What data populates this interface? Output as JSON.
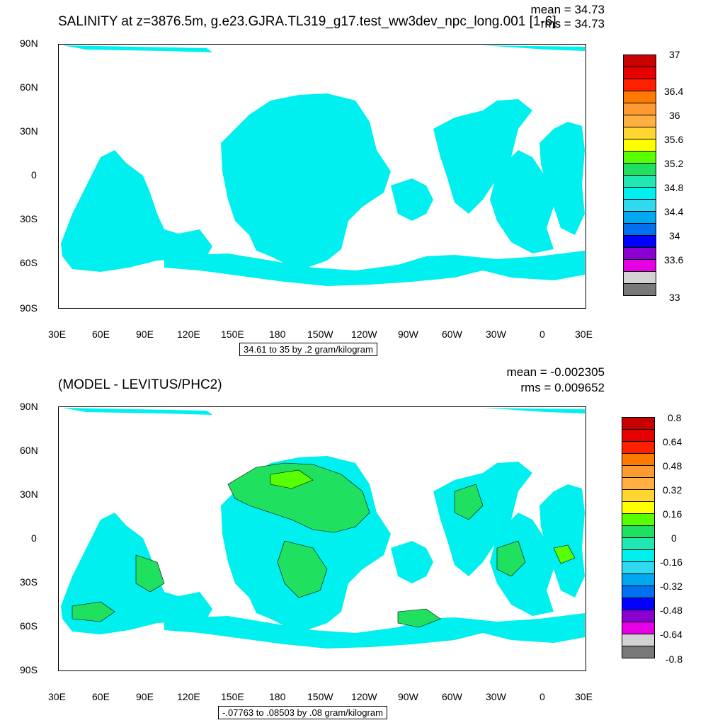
{
  "panel_top": {
    "title": "SALINITY at z=3876.5m, g.e23.GJRA.TL319_g17.test_ww3dev_npc_long.001 [1-6]",
    "mean_label": "mean = 34.73",
    "rms_label": "rms = 34.73",
    "y_ticks": [
      "90N",
      "60N",
      "30N",
      "0",
      "30S",
      "60S",
      "90S"
    ],
    "x_ticks": [
      "30E",
      "60E",
      "90E",
      "120E",
      "150E",
      "180",
      "150W",
      "120W",
      "90W",
      "60W",
      "30W",
      "0",
      "30E"
    ],
    "contour_info": "34.61 to 35 by .2 gram/kilogram",
    "colorbar_labels": [
      "37",
      "36.4",
      "36",
      "35.6",
      "35.2",
      "34.8",
      "34.4",
      "34",
      "33.6",
      "33"
    ],
    "colorbar_colors": [
      "#c80000",
      "#e60000",
      "#ff2000",
      "#ff7a00",
      "#ff9a30",
      "#ffb040",
      "#ffd530",
      "#ffff00",
      "#58ff00",
      "#20e060",
      "#20e8b0",
      "#00f0f0",
      "#30d8f0",
      "#00a8f0",
      "#0070f0",
      "#0000ff",
      "#8a00d0",
      "#e600e6",
      "#d2d2d2",
      "#787878"
    ]
  },
  "panel_bottom": {
    "title": "(MODEL - LEVITUS/PHC2)",
    "mean_label": "mean = -0.002305",
    "rms_label": "rms = 0.009652",
    "y_ticks": [
      "90N",
      "60N",
      "30N",
      "0",
      "30S",
      "60S",
      "90S"
    ],
    "x_ticks": [
      "30E",
      "60E",
      "90E",
      "120E",
      "150E",
      "180",
      "150W",
      "120W",
      "90W",
      "60W",
      "30W",
      "0",
      "30E"
    ],
    "contour_info": "-.07763 to .08503 by .08 gram/kilogram",
    "colorbar_labels": [
      "0.8",
      "0.64",
      "0.48",
      "0.32",
      "0.16",
      "0",
      "-0.16",
      "-0.32",
      "-0.48",
      "-0.64",
      "-0.8"
    ],
    "colorbar_colors": [
      "#c80000",
      "#e60000",
      "#ff2000",
      "#ff7a00",
      "#ff9a30",
      "#ffb040",
      "#ffd530",
      "#ffff00",
      "#58ff00",
      "#20e060",
      "#20e8b0",
      "#00f0f0",
      "#30d8f0",
      "#00a8f0",
      "#0070f0",
      "#0000ff",
      "#8a00d0",
      "#e600e6",
      "#d2d2d2",
      "#787878"
    ]
  },
  "map_colors": {
    "salinity_fill": "#00f0f0",
    "anomaly_cyan": "#00f0f0",
    "anomaly_green": "#20e060",
    "anomaly_bright_green": "#58ff00"
  }
}
